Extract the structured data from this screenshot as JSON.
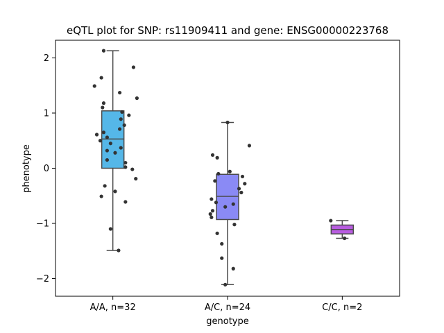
{
  "chart_data": {
    "type": "box",
    "title": "eQTL plot for SNP: rs11909411 and gene: ENSG00000223768",
    "xlabel": "genotype",
    "ylabel": "phenotype",
    "ylim": [
      -2.32,
      2.32
    ],
    "yticks": [
      -2,
      -1,
      0,
      1,
      2
    ],
    "yticklabels": [
      "−2",
      "−1",
      "0",
      "1",
      "2"
    ],
    "grid": false,
    "categories": [
      "A/A, n=32",
      "A/C, n=24",
      "C/C, n=2"
    ],
    "groups": [
      {
        "category": "A/A, n=32",
        "color": "#55b7e8",
        "box": {
          "whisker_low": -1.49,
          "q1": 0.0,
          "median": 0.53,
          "q3": 1.04,
          "whisker_high": 2.13
        },
        "points": [
          {
            "x": -0.08,
            "y": 2.13
          },
          {
            "x": 0.18,
            "y": 1.83
          },
          {
            "x": -0.1,
            "y": 1.64
          },
          {
            "x": -0.16,
            "y": 1.49
          },
          {
            "x": 0.06,
            "y": 1.37
          },
          {
            "x": 0.21,
            "y": 1.27
          },
          {
            "x": -0.08,
            "y": 1.18
          },
          {
            "x": -0.09,
            "y": 1.1
          },
          {
            "x": 0.08,
            "y": 1.02
          },
          {
            "x": 0.14,
            "y": 0.96
          },
          {
            "x": 0.07,
            "y": 0.89
          },
          {
            "x": 0.1,
            "y": 0.78
          },
          {
            "x": 0.06,
            "y": 0.71
          },
          {
            "x": -0.08,
            "y": 0.65
          },
          {
            "x": -0.14,
            "y": 0.61
          },
          {
            "x": -0.05,
            "y": 0.56
          },
          {
            "x": -0.11,
            "y": 0.5
          },
          {
            "x": -0.02,
            "y": 0.45
          },
          {
            "x": 0.07,
            "y": 0.37
          },
          {
            "x": -0.05,
            "y": 0.32
          },
          {
            "x": 0.02,
            "y": 0.28
          },
          {
            "x": -0.05,
            "y": 0.15
          },
          {
            "x": 0.11,
            "y": 0.1
          },
          {
            "x": 0.11,
            "y": 0.02
          },
          {
            "x": 0.17,
            "y": -0.02
          },
          {
            "x": 0.2,
            "y": -0.19
          },
          {
            "x": -0.07,
            "y": -0.32
          },
          {
            "x": 0.02,
            "y": -0.42
          },
          {
            "x": -0.1,
            "y": -0.51
          },
          {
            "x": 0.11,
            "y": -0.61
          },
          {
            "x": -0.02,
            "y": -1.1
          },
          {
            "x": 0.05,
            "y": -1.49
          }
        ]
      },
      {
        "category": "A/C, n=24",
        "color": "#8a8af5",
        "box": {
          "whisker_low": -2.11,
          "q1": -0.93,
          "median": -0.51,
          "q3": -0.11,
          "whisker_high": 0.83
        },
        "points": [
          {
            "x": 0.0,
            "y": 0.83
          },
          {
            "x": 0.19,
            "y": 0.41
          },
          {
            "x": -0.13,
            "y": 0.24
          },
          {
            "x": -0.09,
            "y": 0.19
          },
          {
            "x": 0.02,
            "y": -0.06
          },
          {
            "x": -0.08,
            "y": -0.1
          },
          {
            "x": 0.13,
            "y": -0.15
          },
          {
            "x": -0.11,
            "y": -0.23
          },
          {
            "x": 0.15,
            "y": -0.28
          },
          {
            "x": 0.1,
            "y": -0.37
          },
          {
            "x": 0.12,
            "y": -0.44
          },
          {
            "x": -0.14,
            "y": -0.56
          },
          {
            "x": 0.05,
            "y": -0.65
          },
          {
            "x": -0.02,
            "y": -0.7
          },
          {
            "x": -0.13,
            "y": -0.77
          },
          {
            "x": -0.15,
            "y": -0.83
          },
          {
            "x": -0.14,
            "y": -0.89
          },
          {
            "x": 0.06,
            "y": -1.02
          },
          {
            "x": -0.09,
            "y": -1.18
          },
          {
            "x": -0.05,
            "y": -1.37
          },
          {
            "x": -0.05,
            "y": -1.63
          },
          {
            "x": 0.05,
            "y": -1.82
          },
          {
            "x": -0.02,
            "y": -2.11
          },
          {
            "x": -0.1,
            "y": -0.62
          }
        ]
      },
      {
        "category": "C/C, n=2",
        "color": "#b85ce0",
        "box": {
          "whisker_low": -1.27,
          "q1": -1.19,
          "median": -1.11,
          "q3": -1.03,
          "whisker_high": -0.95
        },
        "points": [
          {
            "x": -0.1,
            "y": -0.95
          },
          {
            "x": 0.02,
            "y": -1.27
          }
        ]
      }
    ]
  }
}
